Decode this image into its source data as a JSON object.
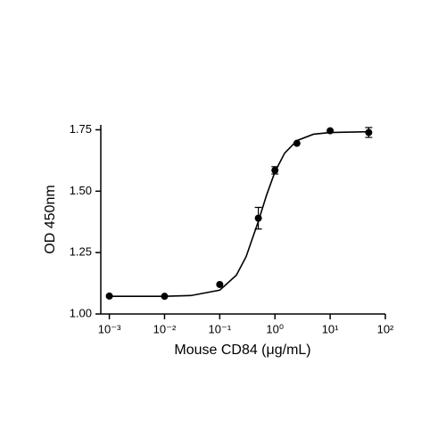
{
  "chart_data": {
    "type": "scatter",
    "x_label": "Mouse CD84 (μg/mL)",
    "y_label": "OD 450nm",
    "xlog": true,
    "xlim": [
      0.0007,
      100
    ],
    "ylim": [
      1.0,
      1.77
    ],
    "xticks": [
      {
        "value": 0.001,
        "label": "10⁻³"
      },
      {
        "value": 0.01,
        "label": "10⁻²"
      },
      {
        "value": 0.1,
        "label": "10⁻¹"
      },
      {
        "value": 1,
        "label": "10⁰"
      },
      {
        "value": 10,
        "label": "10¹"
      },
      {
        "value": 100,
        "label": "10²"
      }
    ],
    "yticks": [
      {
        "value": 1.0,
        "label": "1.00"
      },
      {
        "value": 1.25,
        "label": "1.25"
      },
      {
        "value": 1.5,
        "label": "1.50"
      },
      {
        "value": 1.75,
        "label": "1.75"
      }
    ],
    "series": [
      {
        "type": "scatter",
        "color": "#000000",
        "x": [
          0.001,
          0.01,
          0.1,
          0.5,
          1,
          2.5,
          10,
          50
        ],
        "values": [
          1.073,
          1.072,
          1.12,
          1.39,
          1.585,
          1.695,
          1.746,
          1.739
        ],
        "errors": [
          0,
          0,
          0,
          0.044,
          0.015,
          0,
          0,
          0.02
        ]
      },
      {
        "type": "line",
        "color": "#000000",
        "x": [
          0.001,
          0.01,
          0.03,
          0.1,
          0.2,
          0.3,
          0.5,
          0.7,
          1,
          1.5,
          2.5,
          5,
          10,
          50
        ],
        "values": [
          1.072,
          1.072,
          1.075,
          1.097,
          1.158,
          1.233,
          1.377,
          1.482,
          1.579,
          1.655,
          1.706,
          1.732,
          1.739,
          1.742
        ]
      }
    ]
  }
}
